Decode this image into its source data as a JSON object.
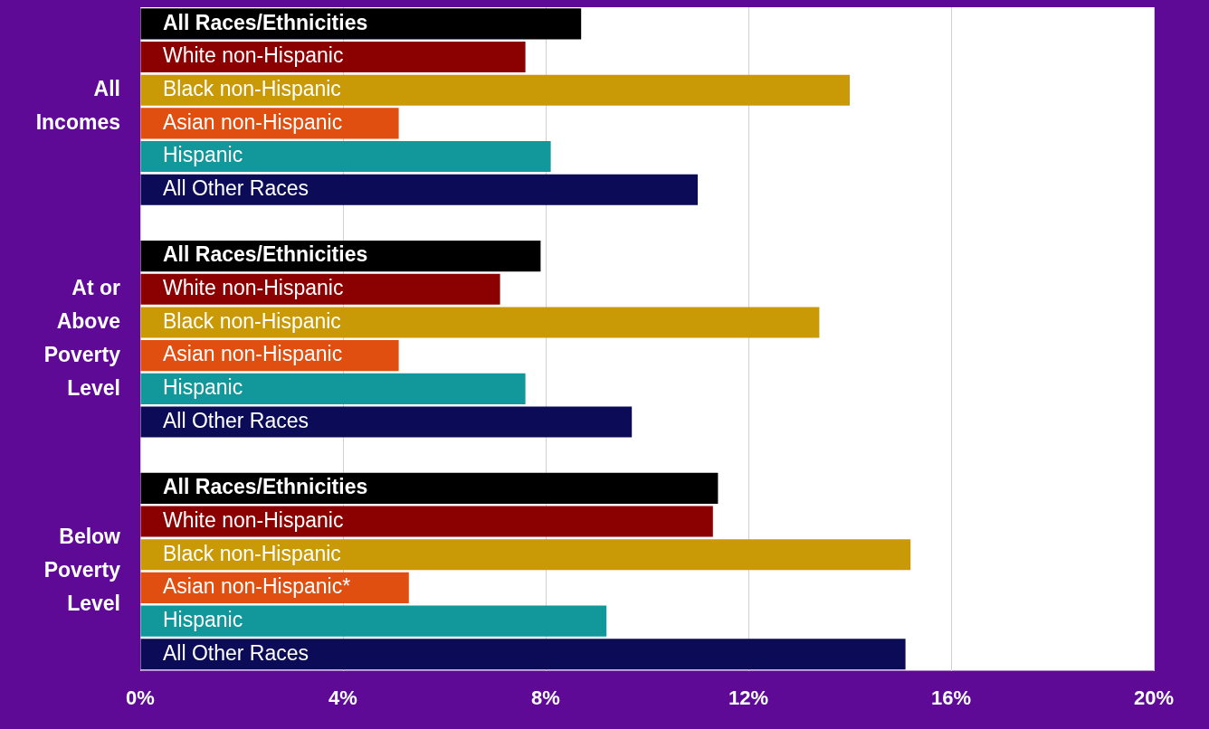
{
  "chart_data": {
    "type": "bar",
    "orientation": "horizontal",
    "categories": [
      "All Races/Ethnicities",
      "White non-Hispanic",
      "Black non-Hispanic",
      "Asian non-Hispanic",
      "Hispanic",
      "All Other Races",
      null,
      "All Races/Ethnicities",
      "White non-Hispanic",
      "Black non-Hispanic",
      "Asian non-Hispanic",
      "Hispanic",
      "All Other Races",
      null,
      "All Races/Ethnicities",
      "White non-Hispanic",
      "Black non-Hispanic",
      "Asian non-Hispanic*",
      "Hispanic",
      "All Other Races"
    ],
    "values": [
      8.7,
      7.6,
      14.0,
      5.1,
      8.1,
      11.0,
      null,
      7.9,
      7.1,
      13.4,
      5.1,
      7.6,
      9.7,
      null,
      11.4,
      11.3,
      15.2,
      5.3,
      9.2,
      15.1
    ],
    "colors": [
      "#000000",
      "#8b0000",
      "#c99a06",
      "#e04e10",
      "#12989a",
      "#0b0b58",
      "#ffffff",
      "#000000",
      "#8b0000",
      "#c99a06",
      "#e04e10",
      "#12989a",
      "#0b0b58",
      "#ffffff",
      "#000000",
      "#8b0000",
      "#c99a06",
      "#e04e10",
      "#12989a",
      "#0b0b58"
    ],
    "xlim": [
      0,
      20
    ],
    "xticks": [
      {
        "value": 0,
        "label": "0%"
      },
      {
        "value": 4,
        "label": "4%"
      },
      {
        "value": 8,
        "label": "8%"
      },
      {
        "value": 12,
        "label": "12%"
      },
      {
        "value": 16,
        "label": "16%"
      },
      {
        "value": 20,
        "label": "20%"
      }
    ],
    "grid": "x",
    "legend": false,
    "annotations": [
      "All Incomes",
      "At or Above Poverty Level",
      "Below Poverty Level"
    ]
  }
}
